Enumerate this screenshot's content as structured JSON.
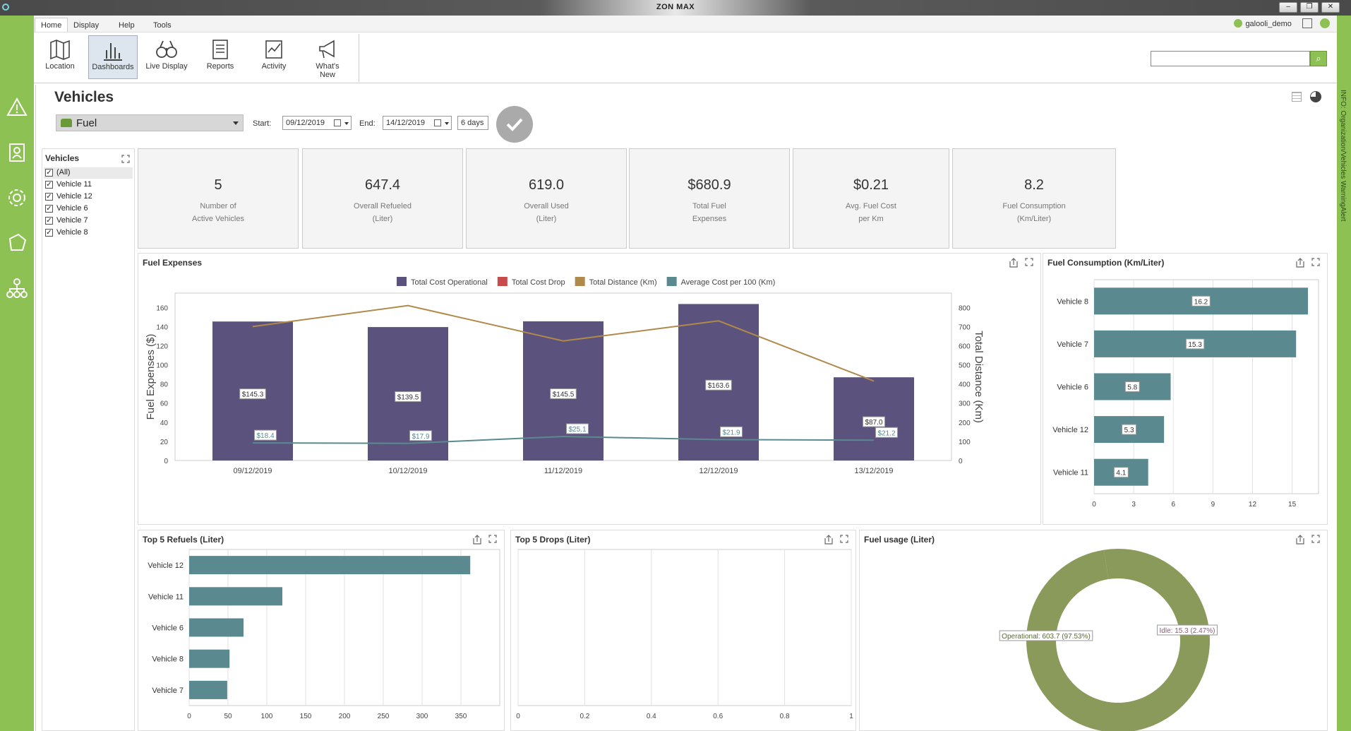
{
  "window": {
    "title": "ZON MAX"
  },
  "menu": {
    "tabs": [
      {
        "label": "Home"
      },
      {
        "label": "Display"
      },
      {
        "label": "Help"
      },
      {
        "label": "Tools"
      }
    ],
    "user": "galooli_demo"
  },
  "ribbon": {
    "buttons": [
      {
        "label": "Location"
      },
      {
        "label": "Dashboards"
      },
      {
        "label": "Live Display"
      },
      {
        "label": "Reports"
      },
      {
        "label": "Activity"
      },
      {
        "label": "What's New"
      }
    ],
    "search_placeholder": ""
  },
  "sidebar_right": {
    "text": "INFO: Organization/Vehicles   WarningAlert"
  },
  "page": {
    "title": "Vehicles",
    "dashboard": "Fuel",
    "start_label": "Start:",
    "start_date": "09/12/2019",
    "end_label": "End:",
    "end_date": "14/12/2019",
    "days": "6 days"
  },
  "vehicles_panel": {
    "title": "Vehicles",
    "items": [
      {
        "label": "(All)",
        "checked": true
      },
      {
        "label": "Vehicle 11",
        "checked": true
      },
      {
        "label": "Vehicle 12",
        "checked": true
      },
      {
        "label": "Vehicle 6",
        "checked": true
      },
      {
        "label": "Vehicle 7",
        "checked": true
      },
      {
        "label": "Vehicle 8",
        "checked": true
      }
    ]
  },
  "kpis": [
    {
      "value": "5",
      "line1": "Number of",
      "line2": "Active Vehicles"
    },
    {
      "value": "647.4",
      "line1": "Overall Refueled",
      "line2": "(Liter)"
    },
    {
      "value": "619.0",
      "line1": "Overall Used",
      "line2": "(Liter)"
    },
    {
      "value": "$680.9",
      "line1": "Total Fuel",
      "line2": "Expenses"
    },
    {
      "value": "$0.21",
      "line1": "Avg. Fuel Cost",
      "line2": "per Km"
    },
    {
      "value": "8.2",
      "line1": "Fuel Consumption",
      "line2": "(Km/Liter)"
    }
  ],
  "panels": {
    "fuel_expenses": "Fuel Expenses",
    "fuel_consumption": "Fuel Consumption (Km/Liter)",
    "top_refuels": "Top 5 Refuels (Liter)",
    "top_drops": "Top 5 Drops (Liter)",
    "fuel_usage": "Fuel usage (Liter)"
  },
  "colors": {
    "green": "#8dc153",
    "bar_purple": "#5b537e",
    "drop_red": "#c94a4a",
    "distance_gold": "#b08a4a",
    "avg_teal": "#5a8a8f",
    "hbar_teal": "#5a8a8f",
    "donut_green": "#8a9a5b"
  },
  "chart_data": [
    {
      "type": "bar",
      "categories": [
        "09/12/2019",
        "10/12/2019",
        "11/12/2019",
        "12/12/2019",
        "13/12/2019"
      ],
      "series": [
        {
          "name": "Total Cost Operational",
          "values": [
            145.3,
            139.5,
            145.5,
            163.6,
            87.0
          ],
          "labels": [
            "$145.3",
            "$139.5",
            "$145.5",
            "$163.6",
            "$87.0"
          ]
        },
        {
          "name": "Total Cost Drop",
          "values": [
            0,
            0,
            0,
            0,
            0
          ]
        },
        {
          "name": "Total Distance (Km)",
          "values": [
            700,
            810,
            625,
            730,
            415
          ],
          "axis": "right"
        },
        {
          "name": "Average Cost per 100 (Km)",
          "values": [
            18.4,
            17.9,
            25.1,
            21.9,
            21.2
          ],
          "labels": [
            "$18.4",
            "$17.9",
            "$25.1",
            "$21.9",
            "$21.2"
          ]
        }
      ],
      "ylabel": "Fuel Expenses ($)",
      "y2label": "Total Distance (Km)",
      "ylim": [
        0,
        175
      ],
      "yticks": [
        0,
        20,
        40,
        60,
        80,
        100,
        120,
        140,
        160
      ],
      "y2lim": [
        0,
        875
      ],
      "y2ticks": [
        0,
        100,
        200,
        300,
        400,
        500,
        600,
        700,
        800
      ],
      "legend": "top"
    },
    {
      "type": "bar",
      "orientation": "horizontal",
      "categories": [
        "Vehicle 8",
        "Vehicle 7",
        "Vehicle 6",
        "Vehicle 12",
        "Vehicle 11"
      ],
      "values": [
        16.2,
        15.3,
        5.8,
        5.3,
        4.1
      ],
      "xlim": [
        0,
        17
      ],
      "xticks": [
        0,
        3,
        6,
        9,
        12,
        15
      ]
    },
    {
      "type": "bar",
      "orientation": "horizontal",
      "categories": [
        "Vehicle 12",
        "Vehicle 11",
        "Vehicle 6",
        "Vehicle 8",
        "Vehicle 7"
      ],
      "values": [
        362,
        120,
        70,
        52,
        49
      ],
      "xlim": [
        0,
        400
      ],
      "xticks": [
        0,
        50,
        100,
        150,
        200,
        250,
        300,
        350
      ]
    },
    {
      "type": "bar",
      "orientation": "horizontal",
      "categories": [],
      "values": [],
      "xlim": [
        0,
        1
      ],
      "xticks": [
        "0",
        "0.2",
        "0.4",
        "0.6",
        "0.8",
        "1"
      ]
    },
    {
      "type": "pie",
      "donut": true,
      "slices": [
        {
          "name": "Operational",
          "value": 603.7,
          "label": "Operational: 603.7 (97.53%)"
        },
        {
          "name": "Idle",
          "value": 15.3,
          "label": "Idle: 15.3 (2.47%)"
        }
      ]
    }
  ]
}
